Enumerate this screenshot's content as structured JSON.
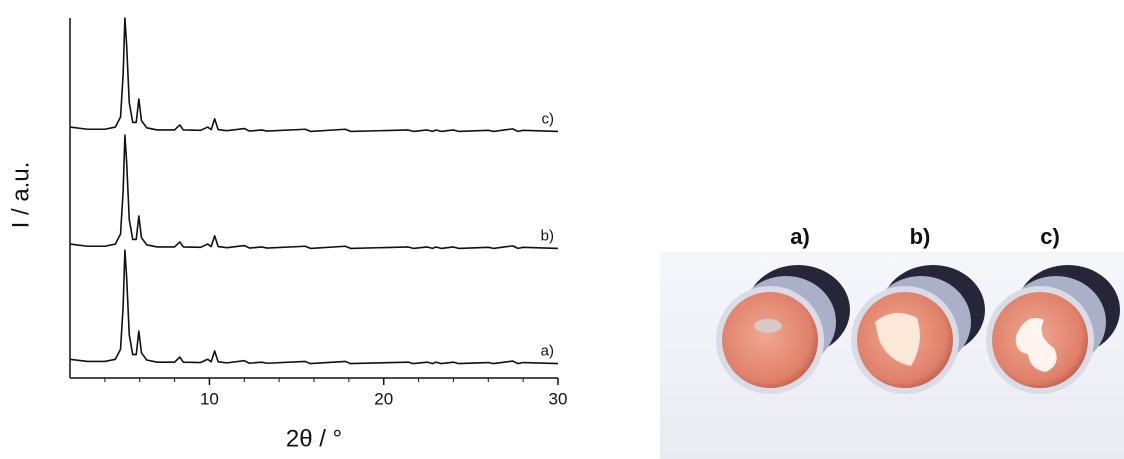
{
  "chart_data": {
    "type": "line",
    "xlabel": "2θ / °",
    "ylabel": "I / a.u.",
    "x": [
      2.0,
      3.0,
      4.0,
      4.6,
      4.9,
      5.05,
      5.15,
      5.25,
      5.4,
      5.6,
      5.8,
      5.95,
      6.1,
      6.4,
      7.0,
      8.0,
      8.3,
      8.5,
      9.5,
      9.9,
      10.1,
      10.3,
      10.5,
      11.0,
      12.0,
      12.3,
      13.0,
      13.3,
      15.5,
      15.8,
      17.8,
      18.1,
      21.4,
      21.7,
      22.5,
      22.8,
      23.0,
      23.3,
      24.0,
      24.3,
      26.0,
      26.3,
      27.4,
      27.7,
      28.0,
      30.0
    ],
    "series": [
      {
        "name": "a)",
        "color": "#111111",
        "values": [
          5.2,
          4.6,
          4.6,
          5.2,
          8,
          20,
          35.5,
          28,
          12,
          6.5,
          6.5,
          13,
          7,
          5,
          4.4,
          4.4,
          5.8,
          4.4,
          4.3,
          5.2,
          4.5,
          7.5,
          4.5,
          4.2,
          4.8,
          4.1,
          4.4,
          4.1,
          4.6,
          4,
          4.6,
          4,
          4.4,
          4,
          4.4,
          4,
          4.4,
          4,
          4.4,
          4,
          4.3,
          4,
          4.7,
          4,
          4.3,
          4
        ]
      },
      {
        "name": "b)",
        "color": "#111111",
        "values": [
          37.2,
          36.6,
          36.6,
          37.2,
          40,
          52,
          67.5,
          60,
          44,
          38.5,
          38.5,
          45,
          39,
          37,
          36.4,
          36.4,
          37.8,
          36.4,
          36.3,
          37.2,
          36.5,
          39.5,
          36.5,
          36.2,
          36.8,
          36.1,
          36.4,
          36.1,
          36.6,
          36,
          36.6,
          36,
          36.4,
          36,
          36.4,
          36,
          36.4,
          36,
          36.4,
          36,
          36.3,
          36,
          36.7,
          36,
          36.3,
          36
        ]
      },
      {
        "name": "c)",
        "color": "#111111",
        "values": [
          69.7,
          69.1,
          69.1,
          69.7,
          72.5,
          84.5,
          100,
          92.5,
          76.5,
          71,
          71,
          77.5,
          71.5,
          69.5,
          68.9,
          68.9,
          70.3,
          68.9,
          68.8,
          69.7,
          69,
          72,
          69,
          68.7,
          69.3,
          68.6,
          68.9,
          68.6,
          69.1,
          68.5,
          69.1,
          68.5,
          68.9,
          68.5,
          68.9,
          68.5,
          68.9,
          68.5,
          68.9,
          68.5,
          68.8,
          68.5,
          69.2,
          68.5,
          68.8,
          68.5
        ]
      }
    ],
    "xlim": [
      2,
      30
    ],
    "xticks": [
      10,
      20,
      30
    ],
    "xminorticks": [
      4,
      6,
      8,
      12,
      14,
      16,
      18,
      22,
      24,
      26,
      28
    ],
    "ylim": [
      0,
      100
    ],
    "grid": false
  },
  "photo": {
    "labels": [
      "a)",
      "b)",
      "c)"
    ]
  }
}
